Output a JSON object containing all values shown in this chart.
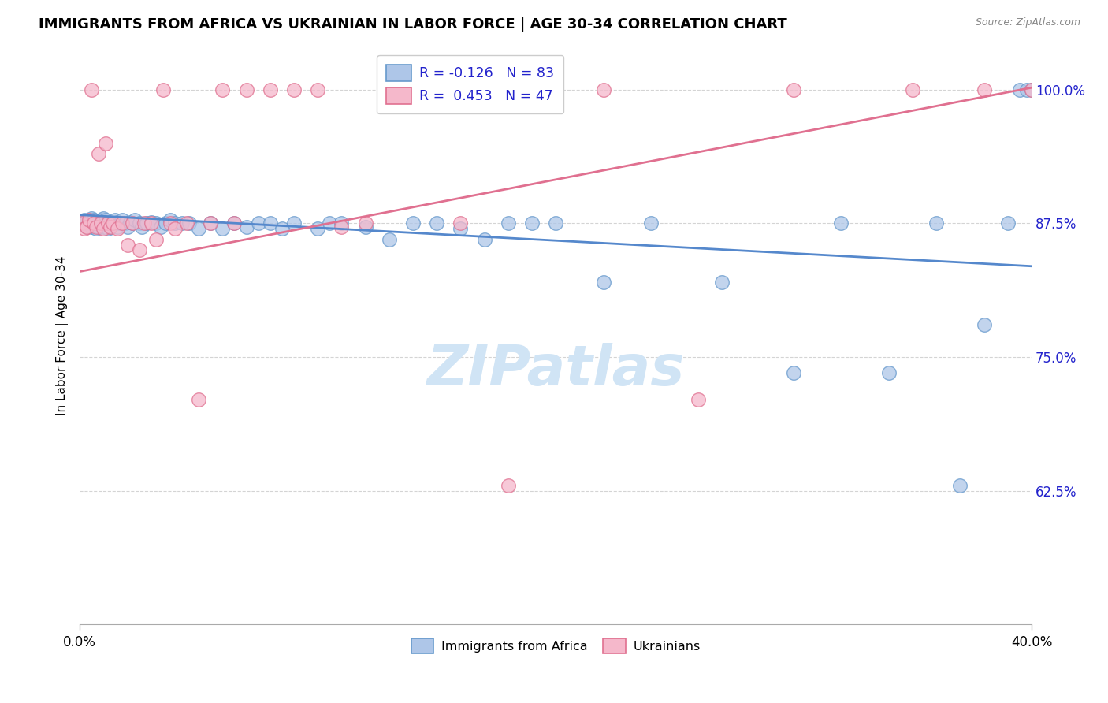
{
  "title": "IMMIGRANTS FROM AFRICA VS UKRAINIAN IN LABOR FORCE | AGE 30-34 CORRELATION CHART",
  "source": "Source: ZipAtlas.com",
  "ylabel": "In Labor Force | Age 30-34",
  "xlim": [
    0.0,
    0.4
  ],
  "ylim": [
    0.5,
    1.04
  ],
  "yticks": [
    0.625,
    0.75,
    0.875,
    1.0
  ],
  "ytick_labels": [
    "62.5%",
    "75.0%",
    "87.5%",
    "100.0%"
  ],
  "xtick_left": "0.0%",
  "xtick_right": "40.0%",
  "background_color": "#ffffff",
  "grid_color": "#d0d0d0",
  "africa_fill": "#aec6e8",
  "africa_edge": "#6699cc",
  "ukraine_fill": "#f5b8cb",
  "ukraine_edge": "#e07090",
  "africa_line_color": "#5588cc",
  "ukraine_line_color": "#e07090",
  "legend_text_color": "#2222cc",
  "watermark_color": "#d0e4f5",
  "africa_line_x0": 0.0,
  "africa_line_y0": 0.883,
  "africa_line_x1": 0.4,
  "africa_line_y1": 0.835,
  "ukraine_line_x0": 0.0,
  "ukraine_line_y0": 0.83,
  "ukraine_line_x1": 0.4,
  "ukraine_line_y1": 1.002,
  "africa_x": [
    0.001,
    0.002,
    0.002,
    0.003,
    0.004,
    0.004,
    0.005,
    0.005,
    0.005,
    0.006,
    0.006,
    0.007,
    0.007,
    0.008,
    0.008,
    0.009,
    0.009,
    0.01,
    0.01,
    0.01,
    0.011,
    0.011,
    0.012,
    0.012,
    0.013,
    0.013,
    0.014,
    0.015,
    0.015,
    0.016,
    0.016,
    0.017,
    0.018,
    0.019,
    0.02,
    0.021,
    0.022,
    0.023,
    0.025,
    0.026,
    0.028,
    0.03,
    0.032,
    0.034,
    0.036,
    0.038,
    0.04,
    0.043,
    0.046,
    0.05,
    0.055,
    0.06,
    0.065,
    0.07,
    0.075,
    0.08,
    0.085,
    0.09,
    0.1,
    0.105,
    0.11,
    0.12,
    0.13,
    0.14,
    0.15,
    0.16,
    0.17,
    0.18,
    0.19,
    0.2,
    0.22,
    0.24,
    0.27,
    0.3,
    0.32,
    0.34,
    0.36,
    0.37,
    0.38,
    0.39,
    0.395,
    0.398,
    0.4
  ],
  "africa_y": [
    0.875,
    0.875,
    0.878,
    0.872,
    0.875,
    0.878,
    0.872,
    0.875,
    0.88,
    0.875,
    0.878,
    0.87,
    0.875,
    0.872,
    0.876,
    0.875,
    0.878,
    0.872,
    0.875,
    0.88,
    0.875,
    0.878,
    0.87,
    0.875,
    0.872,
    0.876,
    0.875,
    0.878,
    0.875,
    0.872,
    0.876,
    0.875,
    0.878,
    0.875,
    0.872,
    0.876,
    0.875,
    0.878,
    0.875,
    0.872,
    0.875,
    0.876,
    0.875,
    0.872,
    0.875,
    0.878,
    0.875,
    0.875,
    0.875,
    0.87,
    0.875,
    0.87,
    0.875,
    0.872,
    0.875,
    0.875,
    0.87,
    0.875,
    0.87,
    0.875,
    0.875,
    0.872,
    0.86,
    0.875,
    0.875,
    0.87,
    0.86,
    0.875,
    0.875,
    0.875,
    0.82,
    0.875,
    0.82,
    0.735,
    0.875,
    0.735,
    0.875,
    0.63,
    0.78,
    0.875,
    1.0,
    1.0,
    1.0
  ],
  "ukraine_x": [
    0.001,
    0.002,
    0.003,
    0.004,
    0.005,
    0.006,
    0.007,
    0.008,
    0.009,
    0.01,
    0.011,
    0.012,
    0.013,
    0.014,
    0.016,
    0.018,
    0.02,
    0.022,
    0.025,
    0.027,
    0.03,
    0.032,
    0.035,
    0.038,
    0.04,
    0.045,
    0.05,
    0.055,
    0.06,
    0.065,
    0.07,
    0.08,
    0.09,
    0.1,
    0.11,
    0.12,
    0.13,
    0.15,
    0.16,
    0.18,
    0.2,
    0.22,
    0.26,
    0.3,
    0.35,
    0.38,
    0.4
  ],
  "ukraine_y": [
    0.875,
    0.87,
    0.872,
    0.878,
    1.0,
    0.875,
    0.872,
    0.94,
    0.875,
    0.87,
    0.95,
    0.875,
    0.872,
    0.875,
    0.87,
    0.875,
    0.855,
    0.875,
    0.85,
    0.875,
    0.875,
    0.86,
    1.0,
    0.875,
    0.87,
    0.875,
    0.71,
    0.875,
    1.0,
    0.875,
    1.0,
    1.0,
    1.0,
    1.0,
    0.872,
    0.875,
    1.0,
    1.0,
    0.875,
    0.63,
    1.0,
    1.0,
    0.71,
    1.0,
    1.0,
    1.0,
    1.0
  ]
}
